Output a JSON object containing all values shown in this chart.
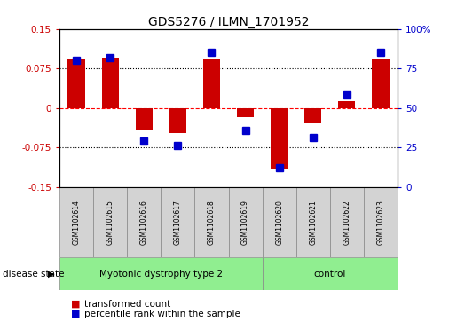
{
  "title": "GDS5276 / ILMN_1701952",
  "samples": [
    "GSM1102614",
    "GSM1102615",
    "GSM1102616",
    "GSM1102617",
    "GSM1102618",
    "GSM1102619",
    "GSM1102620",
    "GSM1102621",
    "GSM1102622",
    "GSM1102623"
  ],
  "red_values": [
    0.093,
    0.095,
    -0.042,
    -0.048,
    0.093,
    -0.018,
    -0.115,
    -0.03,
    0.013,
    0.093
  ],
  "blue_values": [
    80,
    82,
    29,
    26,
    85,
    36,
    12,
    31,
    58,
    85
  ],
  "ylim_left": [
    -0.15,
    0.15
  ],
  "ylim_right": [
    0,
    100
  ],
  "yticks_left": [
    -0.15,
    -0.075,
    0,
    0.075,
    0.15
  ],
  "yticks_right": [
    0,
    25,
    50,
    75,
    100
  ],
  "ytick_labels_left": [
    "-0.15",
    "-0.075",
    "0",
    "0.075",
    "0.15"
  ],
  "ytick_labels_right": [
    "0",
    "25",
    "50",
    "75",
    "100%"
  ],
  "hlines": [
    0.075,
    0.0,
    -0.075
  ],
  "hline_styles": [
    "dotted",
    "dashed_red",
    "dotted"
  ],
  "groups": [
    {
      "label": "Myotonic dystrophy type 2",
      "start": 0,
      "end": 6,
      "color": "#90EE90"
    },
    {
      "label": "control",
      "start": 6,
      "end": 10,
      "color": "#90EE90"
    }
  ],
  "disease_label": "disease state",
  "legend_red": "transformed count",
  "legend_blue": "percentile rank within the sample",
  "red_color": "#CC0000",
  "blue_color": "#0000CC",
  "bar_width": 0.5,
  "blue_marker_size": 6,
  "cell_color": "#D3D3D3",
  "border_color": "#888888"
}
